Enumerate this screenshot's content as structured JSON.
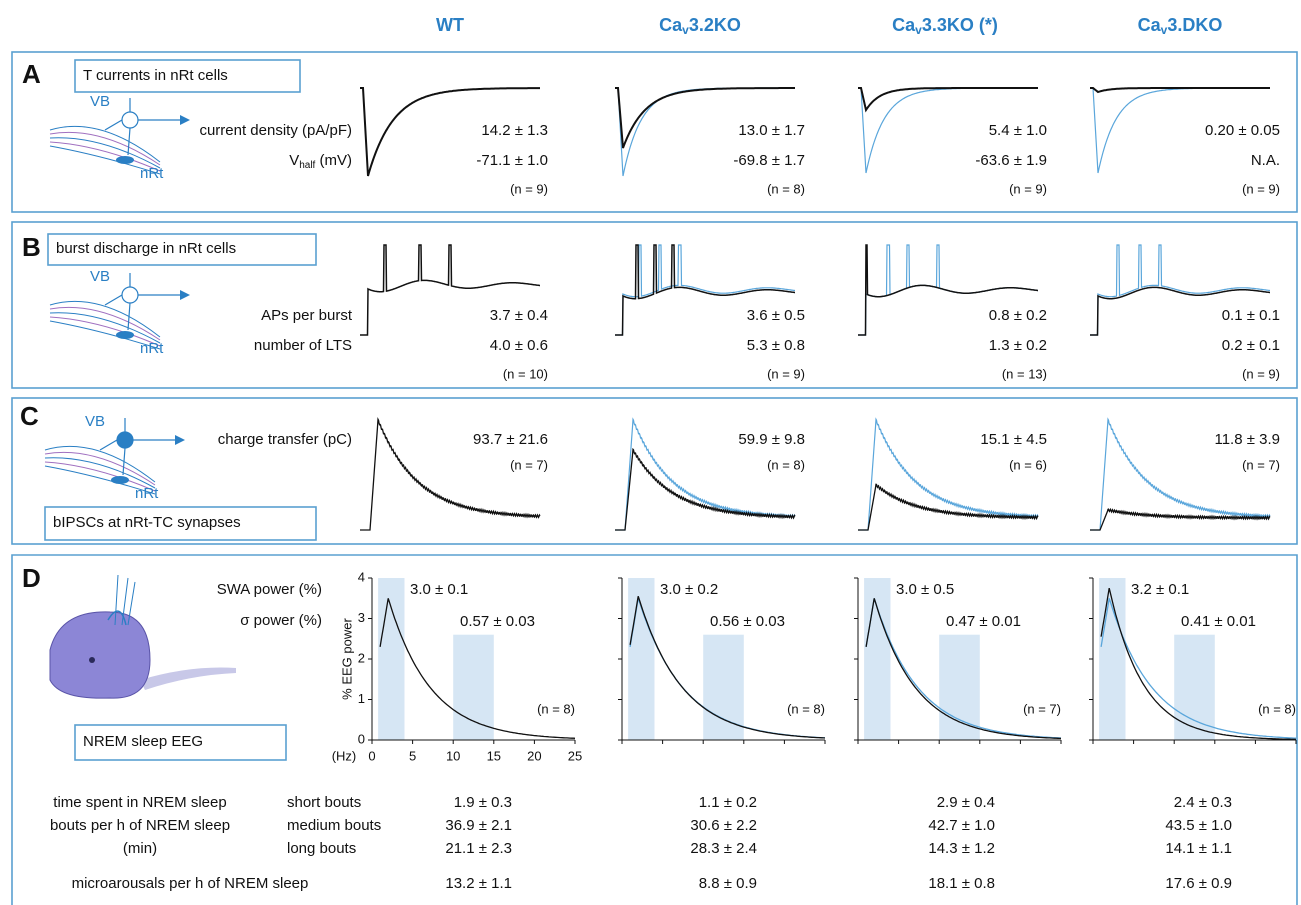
{
  "columns": [
    {
      "text": "WT"
    },
    {
      "base": "Ca",
      "sub": "v",
      "rest": "3.2KO"
    },
    {
      "base": "Ca",
      "sub": "v",
      "rest": "3.3KO (*)"
    },
    {
      "base": "Ca",
      "sub": "v",
      "rest": "3.DKO"
    }
  ],
  "panels": [
    {
      "letter": "A",
      "title": "T currents in nRt cells",
      "diagram": [
        "VB",
        "nRt"
      ],
      "rows": [
        {
          "label": "current density (pA/pF)",
          "values": [
            "14.2 ± 1.3",
            "13.0 ± 1.7",
            "5.4 ± 1.0",
            "0.20 ± 0.05"
          ]
        },
        {
          "label_parts": [
            "V",
            "half",
            " (mV)"
          ],
          "values": [
            "-71.1 ± 1.0",
            "-69.8 ± 1.7",
            "-63.6 ± 1.9",
            "N.A."
          ]
        }
      ],
      "n": [
        "(n = 9)",
        "(n = 8)",
        "(n = 9)",
        "(n = 9)"
      ]
    },
    {
      "letter": "B",
      "title": "burst discharge in nRt cells",
      "diagram": [
        "VB",
        "nRt"
      ],
      "rows": [
        {
          "label": "APs per burst",
          "values": [
            "3.7 ± 0.4",
            "3.6 ± 0.5",
            "0.8 ± 0.2",
            "0.1 ± 0.1"
          ]
        },
        {
          "label": "number of LTS",
          "values": [
            "4.0 ± 0.6",
            "5.3 ± 0.8",
            "1.3 ± 0.2",
            "0.2 ± 0.1"
          ]
        }
      ],
      "n": [
        "(n = 10)",
        "(n = 9)",
        "(n = 13)",
        "(n = 9)"
      ]
    },
    {
      "letter": "C",
      "title": "bIPSCs at nRt-TC synapses",
      "diagram": [
        "VB",
        "nRt"
      ],
      "rows": [
        {
          "label": "charge transfer (pC)",
          "values": [
            "93.7 ± 21.6",
            "59.9 ± 9.8",
            "15.1 ± 4.5",
            "11.8 ± 3.9"
          ]
        }
      ],
      "n": [
        "(n = 7)",
        "(n = 8)",
        "(n = 6)",
        "(n = 7)"
      ]
    },
    {
      "letter": "D",
      "title": "NREM sleep EEG",
      "rows": [
        {
          "label": "SWA power (%)",
          "values": [
            "3.0 ± 0.1",
            "3.0 ± 0.2",
            "3.0 ± 0.5",
            "3.2 ± 0.1"
          ]
        },
        {
          "label": "σ power (%)",
          "values": [
            "0.57 ± 0.03",
            "0.56 ± 0.03",
            "0.47 ± 0.01",
            "0.41 ± 0.01"
          ]
        }
      ],
      "n": [
        "(n = 8)",
        "(n = 8)",
        "(n = 7)",
        "(n = 8)"
      ],
      "eeg_axis": {
        "ylabel": "% EEG power",
        "xunit": "(Hz)",
        "ylim": [
          0,
          4
        ],
        "yticks": [
          0,
          1,
          2,
          3,
          4
        ],
        "xlim": [
          0,
          25
        ],
        "xticks": [
          0,
          5,
          10,
          15,
          20,
          25
        ]
      }
    }
  ],
  "sleep_table": {
    "left_labels": [
      "time spent in NREM sleep",
      "bouts per h of NREM sleep",
      "(min)"
    ],
    "rows": [
      {
        "label": "short bouts",
        "values": [
          "1.9 ± 0.3",
          "1.1 ± 0.2",
          "2.9 ± 0.4",
          "2.4 ± 0.3"
        ]
      },
      {
        "label": "medium bouts",
        "values": [
          "36.9 ± 2.1",
          "30.6 ± 2.2",
          "42.7 ± 1.0",
          "43.5 ± 1.0"
        ]
      },
      {
        "label": "long bouts",
        "values": [
          "21.1 ± 2.3",
          "28.3 ± 2.4",
          "14.3 ± 1.2",
          "14.1 ± 1.1"
        ]
      }
    ],
    "microarousals": {
      "label": "microarousals per h of NREM sleep",
      "values": [
        "13.2 ± 1.1",
        "8.8 ± 0.9",
        "18.1 ± 0.8",
        "17.6 ± 0.9"
      ]
    }
  }
}
